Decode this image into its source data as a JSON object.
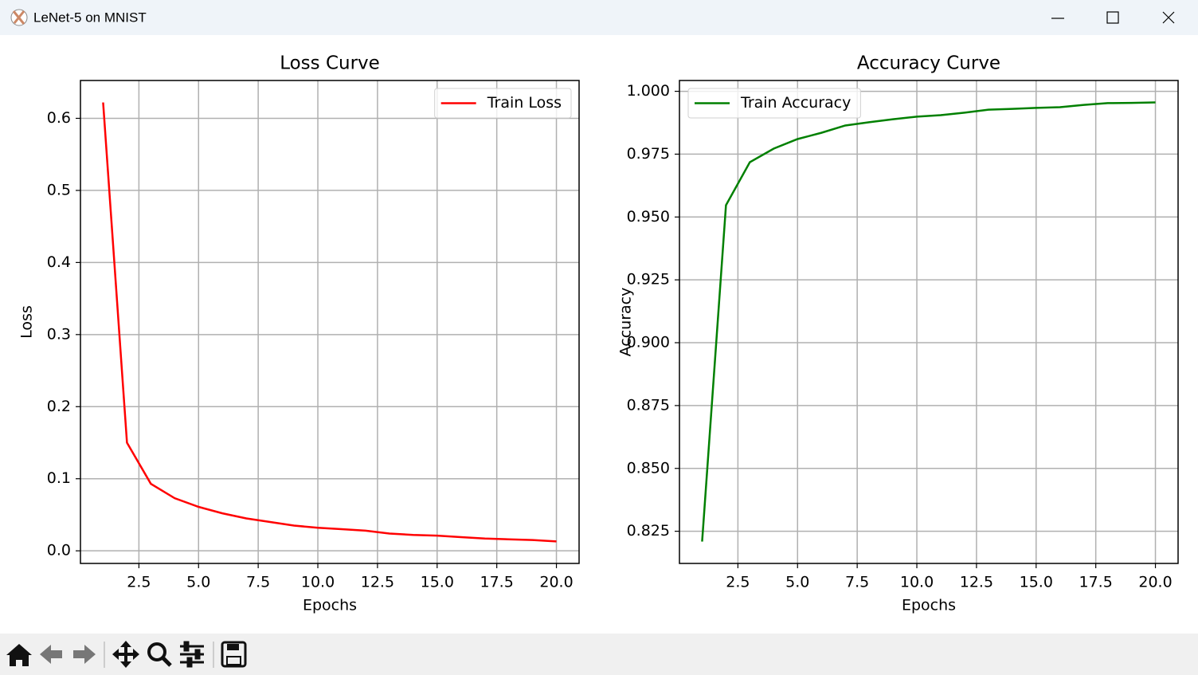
{
  "window": {
    "title": "LeNet-5 on MNIST"
  },
  "chart_data": [
    {
      "type": "line",
      "title": "Loss Curve",
      "xlabel": "Epochs",
      "ylabel": "Loss",
      "x": [
        1,
        2,
        3,
        4,
        5,
        6,
        7,
        8,
        9,
        10,
        11,
        12,
        13,
        14,
        15,
        16,
        17,
        18,
        19,
        20
      ],
      "series": [
        {
          "name": "Train Loss",
          "color": "#ff0000",
          "values": [
            0.622,
            0.15,
            0.093,
            0.073,
            0.061,
            0.052,
            0.045,
            0.04,
            0.035,
            0.032,
            0.03,
            0.028,
            0.024,
            0.022,
            0.021,
            0.019,
            0.017,
            0.016,
            0.015,
            0.013
          ]
        }
      ],
      "xlim": [
        0.05,
        20.95
      ],
      "ylim": [
        -0.0175,
        0.6525
      ],
      "xticks": [
        2.5,
        {
          "value": 5,
          "label": "5.0"
        },
        7.5,
        {
          "value": 10,
          "label": "10.0"
        },
        12.5,
        {
          "value": 15,
          "label": "15.0"
        },
        17.5,
        {
          "value": 20,
          "label": "20.0"
        }
      ],
      "yticks": [
        {
          "value": 0,
          "label": "0.0"
        },
        0.1,
        0.2,
        0.3,
        0.4,
        0.5,
        0.6
      ],
      "grid": true,
      "legend": "upper right"
    },
    {
      "type": "line",
      "title": "Accuracy Curve",
      "xlabel": "Epochs",
      "ylabel": "Accuracy",
      "x": [
        1,
        2,
        3,
        4,
        5,
        6,
        7,
        8,
        9,
        10,
        11,
        12,
        13,
        14,
        15,
        16,
        17,
        18,
        19,
        20
      ],
      "series": [
        {
          "name": "Train Accuracy",
          "color": "#008000",
          "values": [
            0.8209,
            0.9547,
            0.9718,
            0.9772,
            0.981,
            0.9835,
            0.9864,
            0.9877,
            0.9889,
            0.9899,
            0.9905,
            0.9915,
            0.9927,
            0.993,
            0.9934,
            0.9937,
            0.9946,
            0.9953,
            0.9954,
            0.9956
          ]
        }
      ],
      "xlim": [
        0.05,
        20.95
      ],
      "ylim": [
        0.8122,
        1.0043
      ],
      "xticks": [
        2.5,
        {
          "value": 5,
          "label": "5.0"
        },
        7.5,
        {
          "value": 10,
          "label": "10.0"
        },
        12.5,
        {
          "value": 15,
          "label": "15.0"
        },
        17.5,
        {
          "value": 20,
          "label": "20.0"
        }
      ],
      "yticks": [
        0.825,
        {
          "value": 0.85,
          "label": "0.850"
        },
        0.875,
        {
          "value": 0.9,
          "label": "0.900"
        },
        0.925,
        {
          "value": 0.95,
          "label": "0.950"
        },
        0.975,
        {
          "value": 1,
          "label": "1.000"
        }
      ],
      "grid": true,
      "legend": "upper left"
    }
  ]
}
